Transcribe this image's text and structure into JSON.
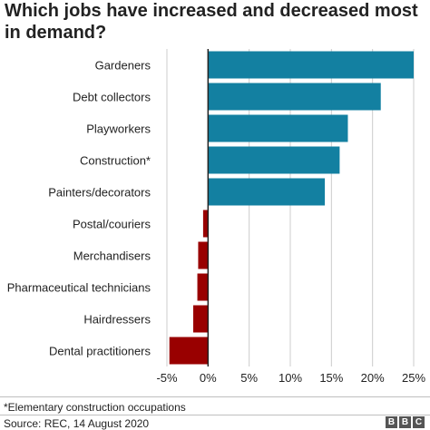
{
  "title": "Which jobs have increased and decreased most in demand?",
  "footnote": "*Elementary construction occupations",
  "source": "Source: REC, 14 August 2020",
  "logo": [
    "B",
    "B",
    "C"
  ],
  "colors": {
    "increase": "#1380A1",
    "decrease": "#990000",
    "grid": "#cccccc",
    "axis": "#222222",
    "text": "#222222"
  },
  "chart_data": {
    "type": "bar",
    "orientation": "horizontal",
    "title": "Which jobs have increased and decreased most in demand?",
    "categories": [
      "Gardeners",
      "Debt collectors",
      "Playworkers",
      "Construction*",
      "Painters/decorators",
      "Postal/couriers",
      "Merchandisers",
      "Pharmaceutical technicians",
      "Hairdressers",
      "Dental practitioners"
    ],
    "values": [
      25,
      21,
      17,
      16,
      14.2,
      -0.6,
      -1.2,
      -1.3,
      -1.8,
      -4.7
    ],
    "unit": "%",
    "xlim": [
      -5,
      25
    ],
    "xticks": [
      -5,
      0,
      5,
      10,
      15,
      20,
      25
    ],
    "xtick_labels": [
      "-5%",
      "0%",
      "5%",
      "10%",
      "15%",
      "20%",
      "25%"
    ],
    "grid": "vertical",
    "legend": "none"
  }
}
